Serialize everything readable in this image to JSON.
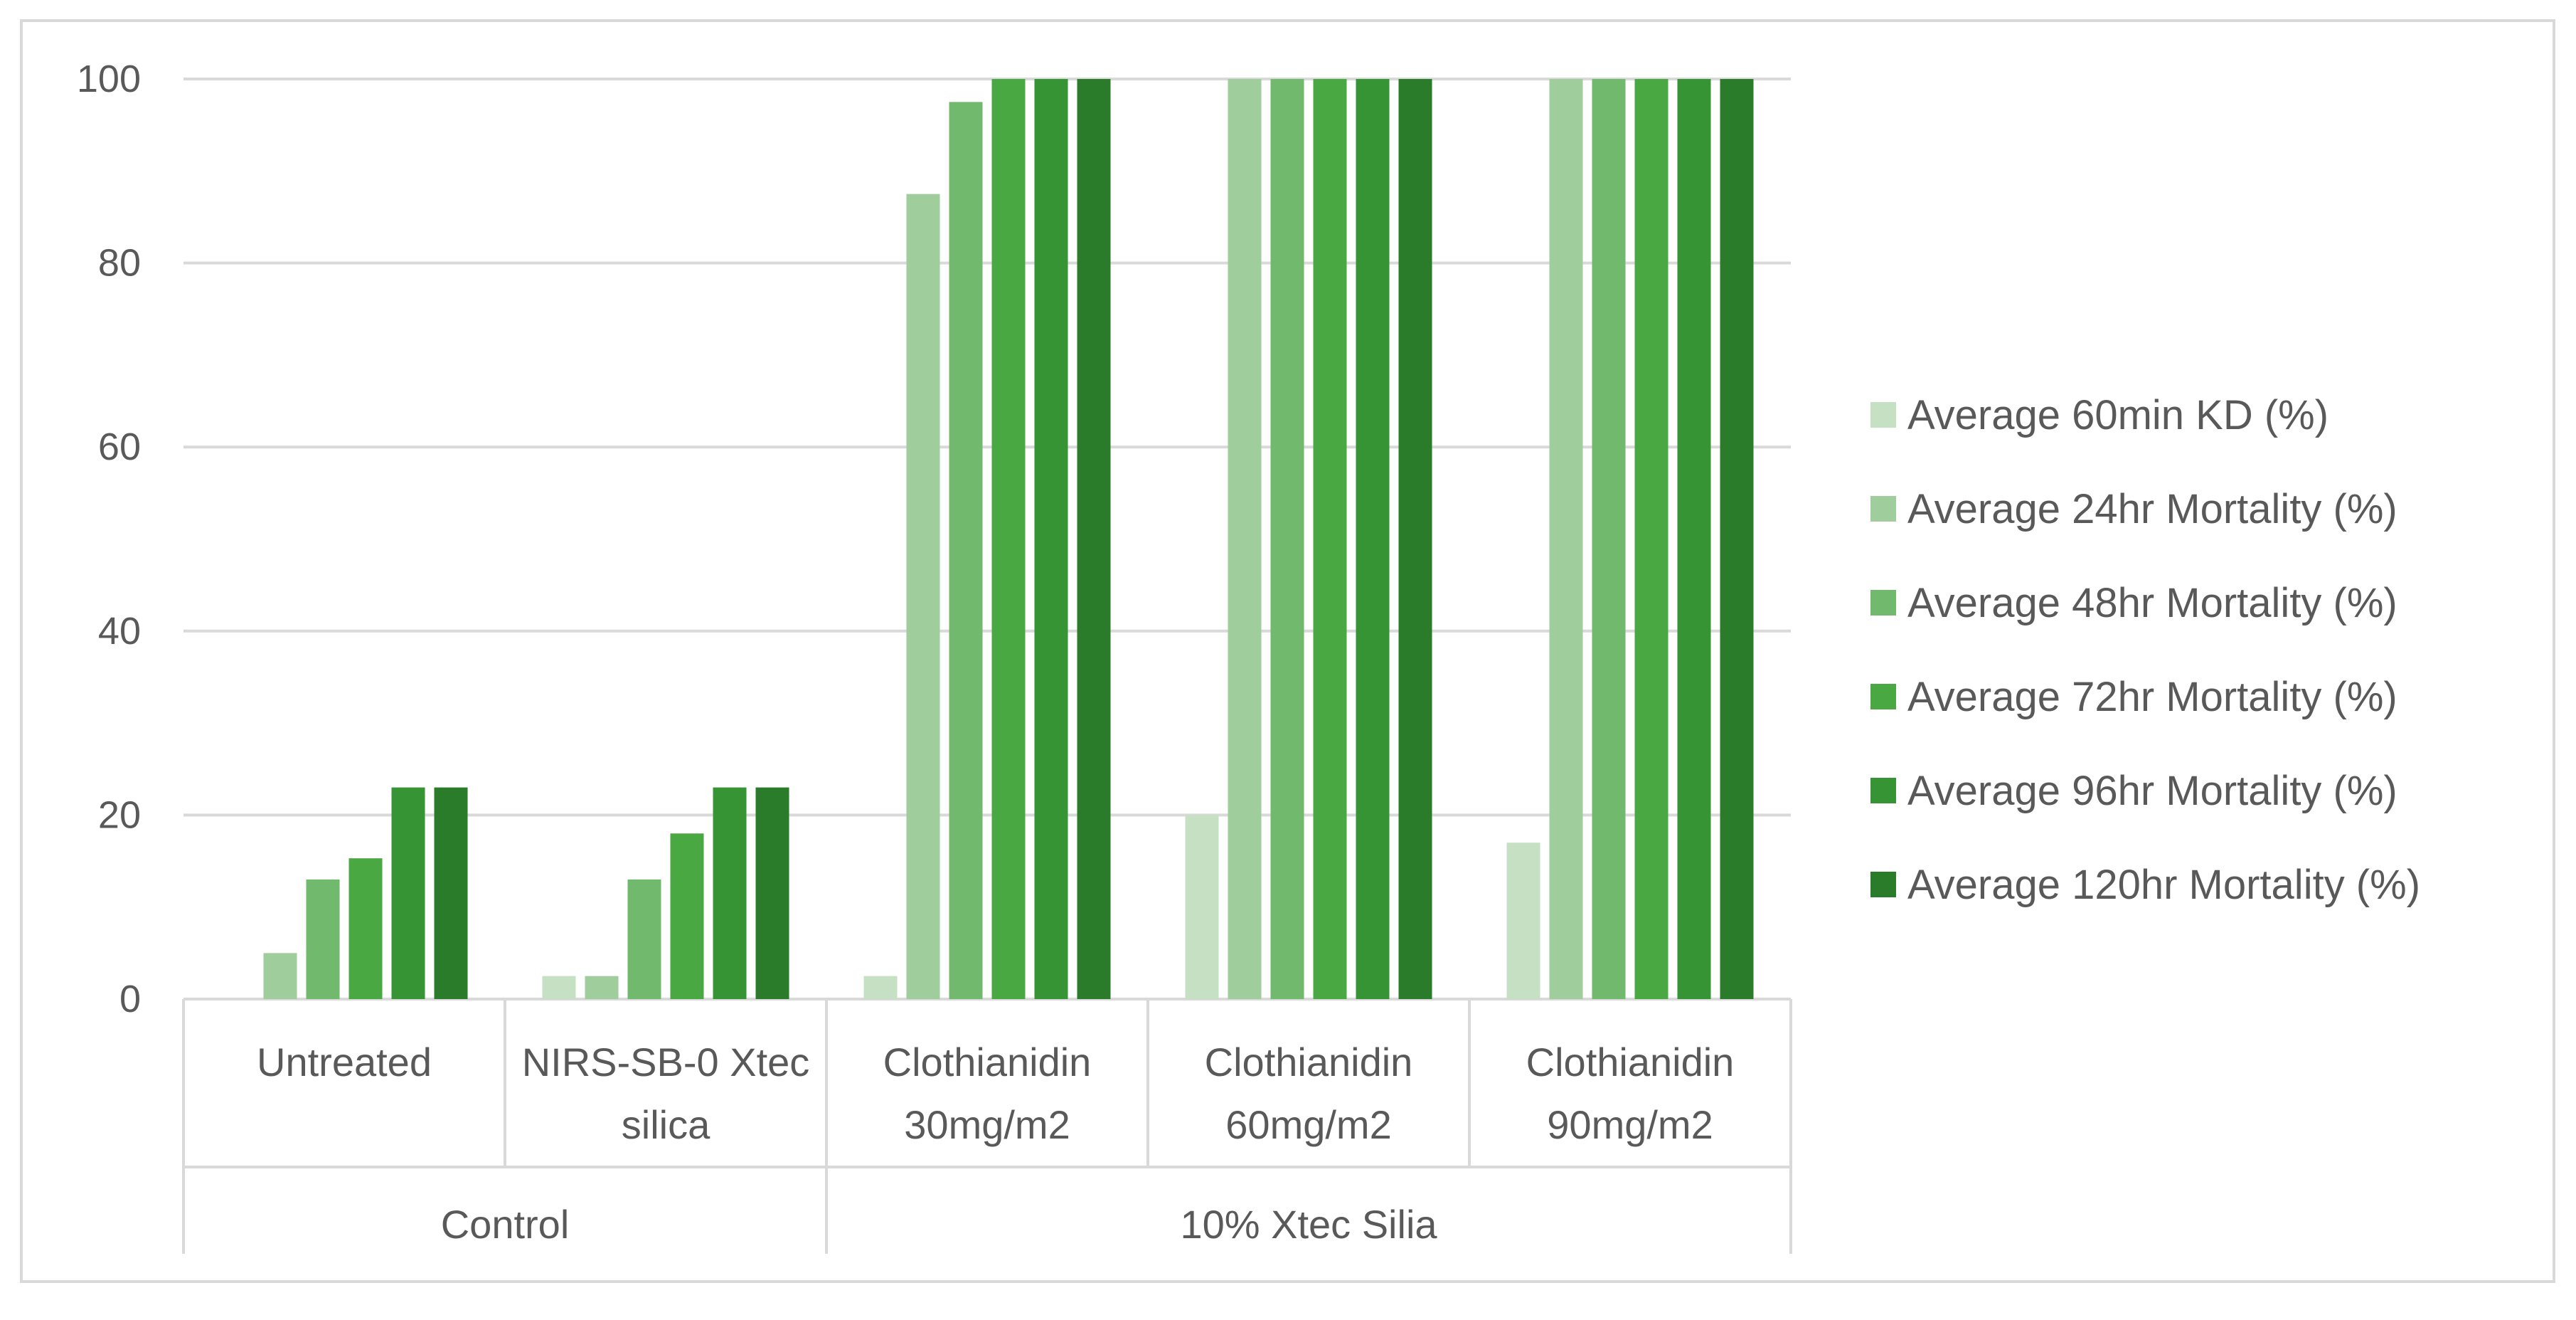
{
  "chart_data": {
    "type": "bar",
    "title": "",
    "xlabel": "",
    "ylabel": "",
    "ylim": [
      0,
      100
    ],
    "yticks": [
      "0",
      "20",
      "40",
      "60",
      "80",
      "100"
    ],
    "grid": true,
    "legend_position": "right",
    "categories": [
      {
        "line1": "Untreated",
        "line2": ""
      },
      {
        "line1": "NIRS-SB-0 Xtec",
        "line2": "silica"
      },
      {
        "line1": "Clothianidin",
        "line2": "30mg/m2"
      },
      {
        "line1": "Clothianidin",
        "line2": "60mg/m2"
      },
      {
        "line1": "Clothianidin",
        "line2": "90mg/m2"
      }
    ],
    "groups": [
      {
        "label": "Control",
        "categories": [
          0,
          1
        ]
      },
      {
        "label": "10% Xtec Silia",
        "categories": [
          2,
          3,
          4
        ]
      }
    ],
    "series": [
      {
        "name": "Average 60min KD (%)",
        "color": "#c5e0c3",
        "values": [
          0,
          2.5,
          2.5,
          20,
          17
        ]
      },
      {
        "name": "Average 24hr Mortality (%)",
        "color": "#9fcd9b",
        "values": [
          5,
          2.5,
          87.5,
          100,
          100
        ]
      },
      {
        "name": "Average 48hr Mortality (%)",
        "color": "#71b96c",
        "values": [
          13,
          13,
          97.5,
          100,
          100
        ]
      },
      {
        "name": "Average 72hr Mortality (%)",
        "color": "#4aa843",
        "values": [
          15.3,
          18,
          100,
          100,
          100
        ]
      },
      {
        "name": "Average 96hr Mortality (%)",
        "color": "#379434",
        "values": [
          23,
          23,
          100,
          100,
          100
        ]
      },
      {
        "name": "Average 120hr Mortality (%)",
        "color": "#2a7b2a",
        "values": [
          23,
          23,
          100,
          100,
          100
        ]
      }
    ]
  }
}
